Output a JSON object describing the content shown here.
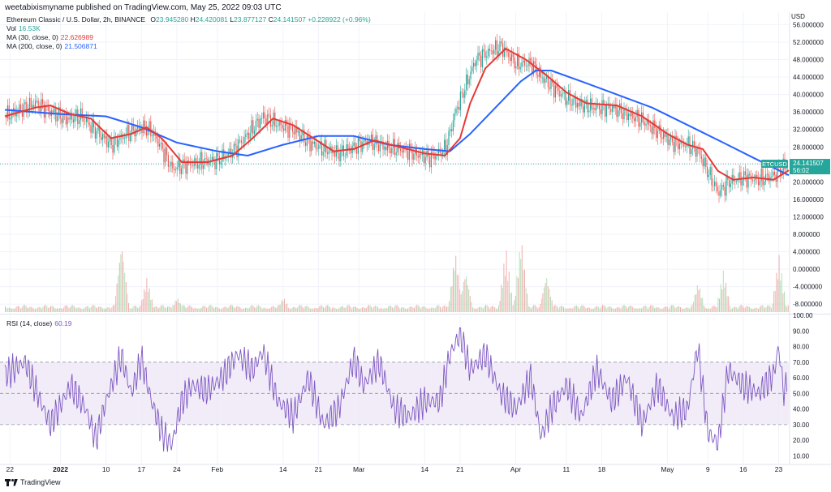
{
  "header": {
    "published": "weetabixismyname published on TradingView.com, May 25, 2022 09:03 UTC"
  },
  "legend": {
    "symbol_line": {
      "title": "Ethereum Classic / U.S. Dollar, 2h, BINANCE",
      "o_label": "O",
      "o": "23.945280",
      "h_label": "H",
      "h": "24.420081",
      "l_label": "L",
      "l": "23.877127",
      "c_label": "C",
      "c": "24.141507",
      "change": "+0.228922 (+0.96%)"
    },
    "vol": {
      "label": "Vol",
      "value": "16.53K"
    },
    "ma30": {
      "label": "MA (30, close, 0)",
      "value": "22.626989"
    },
    "ma200": {
      "label": "MA (200, close, 0)",
      "value": "21.506871"
    },
    "rsi": {
      "label": "RSI (14, close)",
      "value": "60.19"
    }
  },
  "footer": {
    "brand": "TradingView"
  },
  "colors": {
    "ma30": "#e53935",
    "ma200": "#2962ff",
    "rsi": "#7e57c2",
    "rsi_band": "#ede7f6",
    "price_tag": "#26a69a",
    "vol_up": "#a5d6a7",
    "vol_down": "#ef9a9a",
    "candle_up": "#26a69a",
    "candle_down": "#ef5350"
  },
  "chart_data": {
    "type": "candlestick",
    "currency_label": "USD",
    "price_axis_ticks": [
      "56.000000",
      "52.000000",
      "48.000000",
      "44.000000",
      "40.000000",
      "36.000000",
      "32.000000",
      "28.000000",
      "24.000000",
      "20.000000",
      "16.000000",
      "12.000000",
      "8.000000",
      "4.000000",
      "0.000000",
      "-4.000000",
      "-8.000000"
    ],
    "price_axis_range": [
      -10,
      57
    ],
    "last_price_tag": {
      "symbol": "ETCUSD",
      "price": "24.141507",
      "countdown": "56:02",
      "value": 24.14
    },
    "x_ticks": [
      "22",
      "2022",
      "10",
      "17",
      "24",
      "Feb",
      "14",
      "21",
      "Mar",
      "14",
      "21",
      "Apr",
      "11",
      "18",
      "May",
      "9",
      "16",
      "23"
    ],
    "x_tick_dates": [
      "2021-12-22",
      "2022-01-01",
      "2022-01-10",
      "2022-01-17",
      "2022-01-24",
      "2022-02-01",
      "2022-02-14",
      "2022-02-21",
      "2022-03-01",
      "2022-03-14",
      "2022-03-21",
      "2022-04-01",
      "2022-04-11",
      "2022-04-18",
      "2022-05-01",
      "2022-05-09",
      "2022-05-16",
      "2022-05-23"
    ],
    "x_range": [
      "2021-12-21",
      "2022-05-25"
    ],
    "price_series": [
      {
        "d": "2021-12-21",
        "c": 35
      },
      {
        "d": "2021-12-24",
        "c": 36.5
      },
      {
        "d": "2021-12-27",
        "c": 38
      },
      {
        "d": "2021-12-30",
        "c": 36
      },
      {
        "d": "2022-01-02",
        "c": 34.5
      },
      {
        "d": "2022-01-05",
        "c": 35
      },
      {
        "d": "2022-01-08",
        "c": 31.5
      },
      {
        "d": "2022-01-11",
        "c": 28.5
      },
      {
        "d": "2022-01-14",
        "c": 31
      },
      {
        "d": "2022-01-17",
        "c": 32.5
      },
      {
        "d": "2022-01-19",
        "c": 31.5
      },
      {
        "d": "2022-01-21",
        "c": 27.5
      },
      {
        "d": "2022-01-23",
        "c": 23
      },
      {
        "d": "2022-01-26",
        "c": 24
      },
      {
        "d": "2022-01-29",
        "c": 24.5
      },
      {
        "d": "2022-02-01",
        "c": 25
      },
      {
        "d": "2022-02-04",
        "c": 27
      },
      {
        "d": "2022-02-07",
        "c": 31
      },
      {
        "d": "2022-02-10",
        "c": 35
      },
      {
        "d": "2022-02-13",
        "c": 33
      },
      {
        "d": "2022-02-16",
        "c": 32
      },
      {
        "d": "2022-02-19",
        "c": 29
      },
      {
        "d": "2022-02-22",
        "c": 27.5
      },
      {
        "d": "2022-02-25",
        "c": 26.5
      },
      {
        "d": "2022-02-28",
        "c": 28
      },
      {
        "d": "2022-03-03",
        "c": 29.5
      },
      {
        "d": "2022-03-06",
        "c": 28
      },
      {
        "d": "2022-03-09",
        "c": 27.5
      },
      {
        "d": "2022-03-12",
        "c": 26.5
      },
      {
        "d": "2022-03-15",
        "c": 25.5
      },
      {
        "d": "2022-03-18",
        "c": 27.5
      },
      {
        "d": "2022-03-20",
        "c": 36
      },
      {
        "d": "2022-03-22",
        "c": 42
      },
      {
        "d": "2022-03-24",
        "c": 48
      },
      {
        "d": "2022-03-27",
        "c": 50
      },
      {
        "d": "2022-03-29",
        "c": 51
      },
      {
        "d": "2022-04-01",
        "c": 47
      },
      {
        "d": "2022-04-04",
        "c": 47
      },
      {
        "d": "2022-04-06",
        "c": 44
      },
      {
        "d": "2022-04-08",
        "c": 42
      },
      {
        "d": "2022-04-11",
        "c": 39
      },
      {
        "d": "2022-04-14",
        "c": 37.5
      },
      {
        "d": "2022-04-17",
        "c": 37
      },
      {
        "d": "2022-04-20",
        "c": 37
      },
      {
        "d": "2022-04-23",
        "c": 35.5
      },
      {
        "d": "2022-04-26",
        "c": 34
      },
      {
        "d": "2022-04-29",
        "c": 31.5
      },
      {
        "d": "2022-05-02",
        "c": 29
      },
      {
        "d": "2022-05-05",
        "c": 28.5
      },
      {
        "d": "2022-05-07",
        "c": 27
      },
      {
        "d": "2022-05-09",
        "c": 22
      },
      {
        "d": "2022-05-11",
        "c": 17.5
      },
      {
        "d": "2022-05-13",
        "c": 20
      },
      {
        "d": "2022-05-16",
        "c": 21
      },
      {
        "d": "2022-05-19",
        "c": 20.5
      },
      {
        "d": "2022-05-22",
        "c": 21.5
      },
      {
        "d": "2022-05-24",
        "c": 23.5
      },
      {
        "d": "2022-05-25",
        "c": 24.14
      }
    ],
    "ma30_series": [
      {
        "d": "2021-12-21",
        "v": 35
      },
      {
        "d": "2021-12-27",
        "v": 37
      },
      {
        "d": "2021-12-30",
        "v": 37.5
      },
      {
        "d": "2022-01-03",
        "v": 35.5
      },
      {
        "d": "2022-01-07",
        "v": 34.5
      },
      {
        "d": "2022-01-11",
        "v": 30
      },
      {
        "d": "2022-01-15",
        "v": 31
      },
      {
        "d": "2022-01-18",
        "v": 32.5
      },
      {
        "d": "2022-01-21",
        "v": 30
      },
      {
        "d": "2022-01-25",
        "v": 24.5
      },
      {
        "d": "2022-01-30",
        "v": 24.5
      },
      {
        "d": "2022-02-04",
        "v": 26
      },
      {
        "d": "2022-02-08",
        "v": 30
      },
      {
        "d": "2022-02-12",
        "v": 34.5
      },
      {
        "d": "2022-02-16",
        "v": 33
      },
      {
        "d": "2022-02-20",
        "v": 30
      },
      {
        "d": "2022-02-24",
        "v": 27
      },
      {
        "d": "2022-02-28",
        "v": 27.5
      },
      {
        "d": "2022-03-04",
        "v": 29.5
      },
      {
        "d": "2022-03-09",
        "v": 28
      },
      {
        "d": "2022-03-14",
        "v": 26.5
      },
      {
        "d": "2022-03-18",
        "v": 26
      },
      {
        "d": "2022-03-21",
        "v": 30
      },
      {
        "d": "2022-03-23",
        "v": 38
      },
      {
        "d": "2022-03-26",
        "v": 46
      },
      {
        "d": "2022-03-30",
        "v": 50.5
      },
      {
        "d": "2022-04-03",
        "v": 48
      },
      {
        "d": "2022-04-07",
        "v": 44.5
      },
      {
        "d": "2022-04-11",
        "v": 40.5
      },
      {
        "d": "2022-04-15",
        "v": 38
      },
      {
        "d": "2022-04-21",
        "v": 37.5
      },
      {
        "d": "2022-04-26",
        "v": 35
      },
      {
        "d": "2022-05-01",
        "v": 31
      },
      {
        "d": "2022-05-05",
        "v": 28.5
      },
      {
        "d": "2022-05-08",
        "v": 27.5
      },
      {
        "d": "2022-05-11",
        "v": 22.5
      },
      {
        "d": "2022-05-14",
        "v": 20.5
      },
      {
        "d": "2022-05-18",
        "v": 21
      },
      {
        "d": "2022-05-22",
        "v": 20.5
      },
      {
        "d": "2022-05-25",
        "v": 22.63
      }
    ],
    "ma200_series": [
      {
        "d": "2021-12-21",
        "v": 36.5
      },
      {
        "d": "2022-01-01",
        "v": 35.5
      },
      {
        "d": "2022-01-10",
        "v": 35
      },
      {
        "d": "2022-01-17",
        "v": 32.5
      },
      {
        "d": "2022-01-24",
        "v": 29
      },
      {
        "d": "2022-02-01",
        "v": 27
      },
      {
        "d": "2022-02-07",
        "v": 26
      },
      {
        "d": "2022-02-14",
        "v": 28.5
      },
      {
        "d": "2022-02-21",
        "v": 30.5
      },
      {
        "d": "2022-02-28",
        "v": 30.5
      },
      {
        "d": "2022-03-07",
        "v": 28.5
      },
      {
        "d": "2022-03-14",
        "v": 27.5
      },
      {
        "d": "2022-03-19",
        "v": 27
      },
      {
        "d": "2022-03-23",
        "v": 31
      },
      {
        "d": "2022-03-28",
        "v": 37
      },
      {
        "d": "2022-04-02",
        "v": 43
      },
      {
        "d": "2022-04-05",
        "v": 45.5
      },
      {
        "d": "2022-04-08",
        "v": 45.5
      },
      {
        "d": "2022-04-14",
        "v": 43
      },
      {
        "d": "2022-04-21",
        "v": 40
      },
      {
        "d": "2022-04-28",
        "v": 37
      },
      {
        "d": "2022-05-05",
        "v": 33
      },
      {
        "d": "2022-05-12",
        "v": 29
      },
      {
        "d": "2022-05-18",
        "v": 25.5
      },
      {
        "d": "2022-05-25",
        "v": 21.51
      }
    ],
    "volume_spikes": [
      {
        "d": "2022-01-13",
        "p": 0.95
      },
      {
        "d": "2022-01-18",
        "p": 0.45
      },
      {
        "d": "2022-01-24",
        "p": 0.2
      },
      {
        "d": "2022-02-14",
        "p": 0.2
      },
      {
        "d": "2022-03-20",
        "p": 0.8
      },
      {
        "d": "2022-03-22",
        "p": 0.55
      },
      {
        "d": "2022-03-30",
        "p": 0.85
      },
      {
        "d": "2022-04-02",
        "p": 1.0
      },
      {
        "d": "2022-04-07",
        "p": 0.5
      },
      {
        "d": "2022-05-07",
        "p": 0.4
      },
      {
        "d": "2022-05-12",
        "p": 0.55
      },
      {
        "d": "2022-05-23",
        "p": 0.75
      }
    ],
    "rsi_axis_ticks": [
      "100.00",
      "90.00",
      "80.00",
      "70.00",
      "60.00",
      "50.00",
      "40.00",
      "30.00",
      "20.00",
      "10.00"
    ],
    "rsi_range": [
      5,
      100
    ],
    "rsi_bands": {
      "upper": 70,
      "middle": 50,
      "lower": 30
    },
    "rsi_series": [
      {
        "d": "2021-12-21",
        "v": 62
      },
      {
        "d": "2021-12-25",
        "v": 70
      },
      {
        "d": "2021-12-28",
        "v": 45
      },
      {
        "d": "2021-12-30",
        "v": 30
      },
      {
        "d": "2022-01-03",
        "v": 55
      },
      {
        "d": "2022-01-06",
        "v": 40
      },
      {
        "d": "2022-01-08",
        "v": 20
      },
      {
        "d": "2022-01-10",
        "v": 45
      },
      {
        "d": "2022-01-13",
        "v": 74
      },
      {
        "d": "2022-01-15",
        "v": 50
      },
      {
        "d": "2022-01-17",
        "v": 72
      },
      {
        "d": "2022-01-19",
        "v": 45
      },
      {
        "d": "2022-01-21",
        "v": 25
      },
      {
        "d": "2022-01-23",
        "v": 17
      },
      {
        "d": "2022-01-25",
        "v": 45
      },
      {
        "d": "2022-01-27",
        "v": 55
      },
      {
        "d": "2022-01-30",
        "v": 52
      },
      {
        "d": "2022-02-02",
        "v": 60
      },
      {
        "d": "2022-02-05",
        "v": 75
      },
      {
        "d": "2022-02-08",
        "v": 65
      },
      {
        "d": "2022-02-10",
        "v": 77
      },
      {
        "d": "2022-02-13",
        "v": 45
      },
      {
        "d": "2022-02-16",
        "v": 35
      },
      {
        "d": "2022-02-19",
        "v": 60
      },
      {
        "d": "2022-02-22",
        "v": 30
      },
      {
        "d": "2022-02-25",
        "v": 40
      },
      {
        "d": "2022-02-28",
        "v": 72
      },
      {
        "d": "2022-03-02",
        "v": 55
      },
      {
        "d": "2022-03-05",
        "v": 70
      },
      {
        "d": "2022-03-08",
        "v": 40
      },
      {
        "d": "2022-03-11",
        "v": 35
      },
      {
        "d": "2022-03-14",
        "v": 45
      },
      {
        "d": "2022-03-17",
        "v": 45
      },
      {
        "d": "2022-03-19",
        "v": 75
      },
      {
        "d": "2022-03-21",
        "v": 88
      },
      {
        "d": "2022-03-23",
        "v": 65
      },
      {
        "d": "2022-03-26",
        "v": 75
      },
      {
        "d": "2022-03-29",
        "v": 50
      },
      {
        "d": "2022-04-01",
        "v": 40
      },
      {
        "d": "2022-04-04",
        "v": 60
      },
      {
        "d": "2022-04-06",
        "v": 22
      },
      {
        "d": "2022-04-08",
        "v": 40
      },
      {
        "d": "2022-04-11",
        "v": 55
      },
      {
        "d": "2022-04-14",
        "v": 35
      },
      {
        "d": "2022-04-17",
        "v": 65
      },
      {
        "d": "2022-04-20",
        "v": 45
      },
      {
        "d": "2022-04-23",
        "v": 60
      },
      {
        "d": "2022-04-26",
        "v": 30
      },
      {
        "d": "2022-04-29",
        "v": 55
      },
      {
        "d": "2022-05-02",
        "v": 35
      },
      {
        "d": "2022-05-05",
        "v": 40
      },
      {
        "d": "2022-05-07",
        "v": 80
      },
      {
        "d": "2022-05-09",
        "v": 25
      },
      {
        "d": "2022-05-11",
        "v": 18
      },
      {
        "d": "2022-05-13",
        "v": 65
      },
      {
        "d": "2022-05-16",
        "v": 55
      },
      {
        "d": "2022-05-19",
        "v": 50
      },
      {
        "d": "2022-05-22",
        "v": 62
      },
      {
        "d": "2022-05-23",
        "v": 80
      },
      {
        "d": "2022-05-24",
        "v": 50
      },
      {
        "d": "2022-05-25",
        "v": 60.19
      }
    ]
  }
}
